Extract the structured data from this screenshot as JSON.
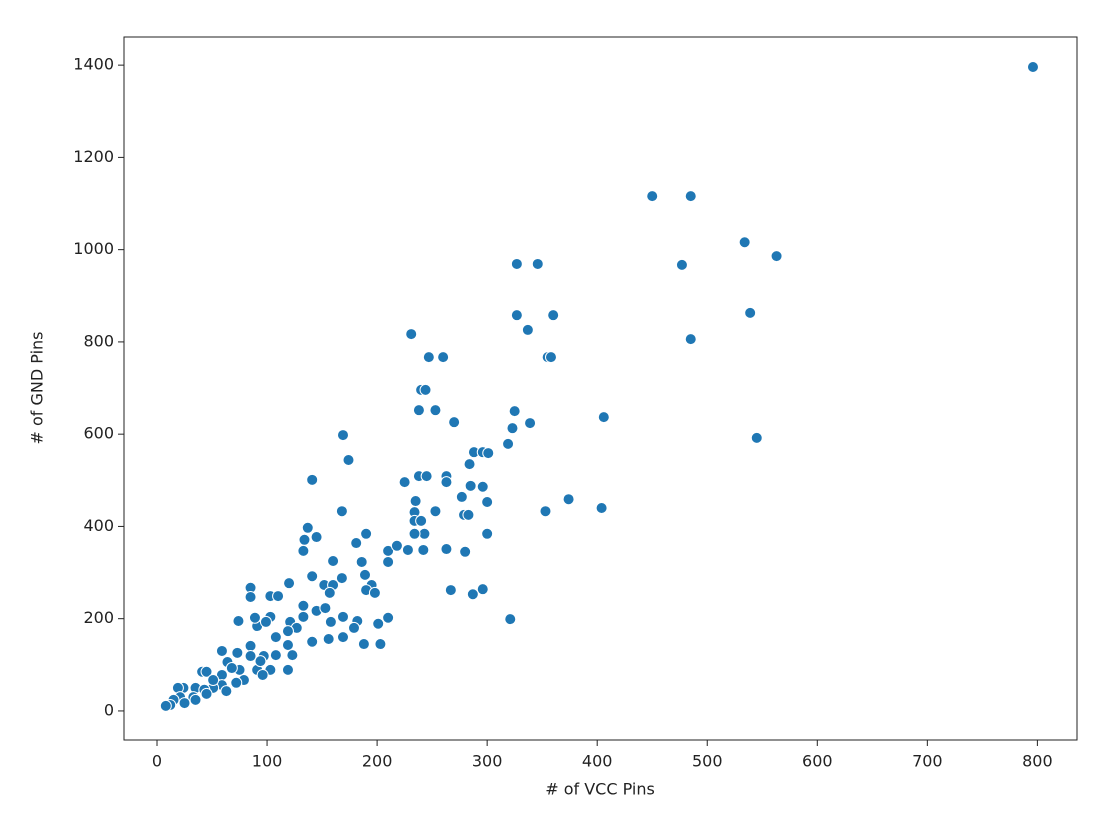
{
  "chart_data": {
    "type": "scatter",
    "x_label": "# of VCC Pins",
    "y_label": "# of GND Pins",
    "xlim": [
      -30,
      836
    ],
    "ylim": [
      -63,
      1461
    ],
    "xticks": [
      0,
      100,
      200,
      300,
      400,
      500,
      600,
      700,
      800
    ],
    "yticks": [
      0,
      200,
      400,
      600,
      800,
      1000,
      1200,
      1400
    ],
    "color": "#1f77b4",
    "x": [
      796,
      450,
      485,
      534,
      477,
      563,
      327,
      346,
      327,
      360,
      337,
      539,
      485,
      231,
      247,
      260,
      355,
      358,
      240,
      244,
      238,
      253,
      270,
      406,
      325,
      169,
      545,
      339,
      323,
      319,
      174,
      288,
      296,
      301,
      225,
      238,
      245,
      263,
      263,
      284,
      141,
      168,
      285,
      296,
      277,
      374,
      300,
      235,
      234,
      253,
      353,
      404,
      279,
      283,
      234,
      240,
      243,
      234,
      300,
      137,
      134,
      145,
      190,
      181,
      133,
      210,
      218,
      228,
      242,
      263,
      280,
      160,
      186,
      210,
      267,
      287,
      296,
      85,
      85,
      120,
      103,
      110,
      141,
      168,
      152,
      160,
      189,
      195,
      190,
      198,
      157,
      74,
      91,
      89,
      103,
      99,
      133,
      145,
      153,
      133,
      169,
      182,
      201,
      210,
      321,
      158,
      121,
      127,
      119,
      108,
      141,
      156,
      169,
      179,
      188,
      203,
      119,
      123,
      108,
      85,
      59,
      97,
      64,
      73,
      85,
      75,
      91,
      103,
      119,
      94,
      68,
      96,
      59,
      41,
      45,
      79,
      59,
      51,
      72,
      35,
      24,
      19,
      21,
      33,
      43,
      35,
      15,
      25,
      12,
      8,
      51,
      45,
      63
    ],
    "values": [
      1396,
      1116,
      1116,
      1016,
      967,
      986,
      969,
      969,
      858,
      858,
      826,
      863,
      806,
      817,
      767,
      767,
      767,
      767,
      696,
      696,
      652,
      652,
      626,
      637,
      650,
      598,
      592,
      624,
      613,
      579,
      544,
      561,
      561,
      559,
      496,
      509,
      509,
      509,
      496,
      535,
      501,
      433,
      488,
      486,
      464,
      459,
      453,
      455,
      431,
      433,
      433,
      440,
      425,
      425,
      412,
      412,
      384,
      384,
      384,
      397,
      371,
      377,
      384,
      364,
      347,
      347,
      358,
      349,
      349,
      351,
      345,
      325,
      323,
      323,
      262,
      253,
      264,
      267,
      247,
      277,
      249,
      249,
      292,
      288,
      273,
      273,
      295,
      273,
      262,
      256,
      256,
      195,
      184,
      202,
      204,
      193,
      228,
      217,
      223,
      204,
      204,
      195,
      189,
      202,
      199,
      193,
      193,
      180,
      173,
      160,
      150,
      156,
      160,
      180,
      145,
      145,
      143,
      121,
      121,
      141,
      130,
      119,
      106,
      126,
      119,
      89,
      89,
      89,
      89,
      108,
      93,
      78,
      78,
      85,
      85,
      67,
      56,
      50,
      61,
      50,
      50,
      50,
      30,
      30,
      46,
      24,
      24,
      17,
      13,
      11,
      67,
      37,
      43
    ]
  }
}
